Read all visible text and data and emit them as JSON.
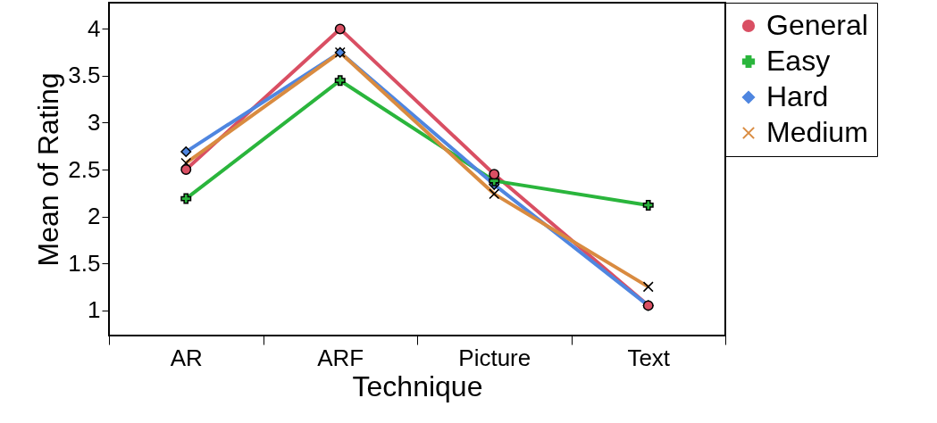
{
  "chart_data": {
    "type": "line",
    "xlabel": "Technique",
    "ylabel": "Mean of Rating",
    "categories": [
      "AR",
      "ARF",
      "Picture",
      "Text"
    ],
    "series": [
      {
        "name": "General",
        "color": "#d94f63",
        "marker": "circle",
        "values": [
          2.5,
          4.0,
          2.45,
          1.05
        ]
      },
      {
        "name": "Easy",
        "color": "#2ab53c",
        "marker": "cross",
        "values": [
          2.19,
          3.45,
          2.38,
          2.12
        ]
      },
      {
        "name": "Hard",
        "color": "#4f86e0",
        "marker": "diamond",
        "values": [
          2.69,
          3.75,
          2.34,
          1.05
        ]
      },
      {
        "name": "Medium",
        "color": "#d98b40",
        "marker": "x",
        "values": [
          2.57,
          3.75,
          2.24,
          1.25
        ]
      }
    ],
    "ylim": [
      0.73,
      4.28
    ],
    "yticks": [
      1,
      1.5,
      2,
      2.5,
      3,
      3.5,
      4
    ],
    "grid": false,
    "legend": "top right",
    "line_style": "solid"
  }
}
